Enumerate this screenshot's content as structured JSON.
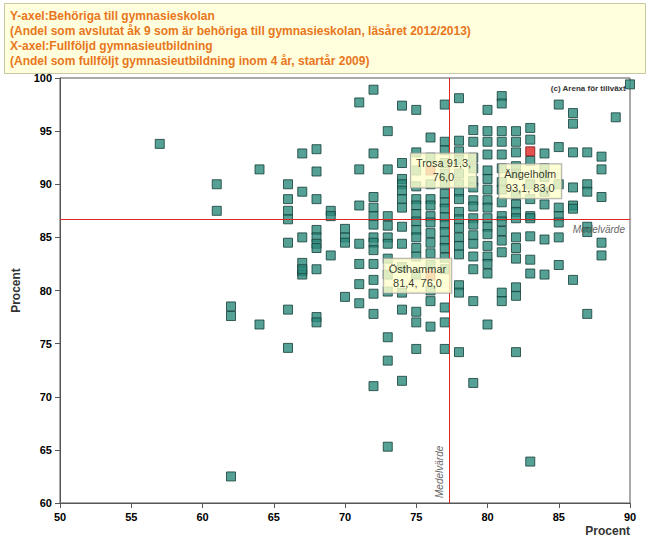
{
  "chart_data": {
    "type": "scatter",
    "title": [
      "Y-axel:Behöriga till gymnasieskolan",
      "(Andel som avslutat åk 9 som är behöriga till gymnasieskolan, läsåret 2012/2013)",
      "X-axel:Fullföljd gymnasieutbildning",
      "(Andel som fullföljt gymnasieutbildning inom 4 år, startår 2009)"
    ],
    "source": "(c) Arena för tillväxt",
    "xlabel": "Procent",
    "ylabel": "Procent",
    "xlim": [
      50,
      90
    ],
    "xticks": [
      50,
      55,
      60,
      65,
      70,
      75,
      80,
      85,
      90
    ],
    "ylim": [
      60,
      100
    ],
    "yticks": [
      60,
      65,
      70,
      75,
      80,
      85,
      90,
      95,
      100
    ],
    "grid": false,
    "marker": "square",
    "color": "#2a8a7c",
    "x": [
      57,
      61,
      61,
      62,
      62,
      62,
      64,
      64,
      66,
      66,
      66,
      66,
      66,
      66,
      66,
      67,
      67,
      67,
      67,
      67,
      67,
      67,
      68,
      68,
      68,
      68,
      68,
      68,
      68,
      68,
      68,
      68,
      69,
      69,
      69,
      70,
      70,
      70,
      70,
      71,
      71,
      71,
      71,
      71,
      71,
      71,
      72,
      72,
      72,
      72,
      72,
      72,
      72,
      72,
      72,
      72,
      72,
      72,
      72,
      72,
      73,
      73,
      73,
      73,
      73,
      73,
      73,
      73,
      73,
      73,
      73,
      73,
      74,
      74,
      74,
      74,
      74,
      74,
      74,
      74,
      74,
      74,
      74,
      74,
      74,
      75,
      75,
      75,
      75,
      75,
      75,
      75,
      75,
      75,
      75,
      75,
      75,
      75,
      75,
      75,
      75,
      76,
      76,
      76,
      76,
      76,
      76,
      76,
      76,
      76,
      76,
      76,
      76,
      76,
      76,
      77,
      77,
      77,
      77,
      77,
      77,
      77,
      77,
      77,
      77,
      77,
      77,
      77,
      77,
      77,
      77,
      77,
      77,
      77,
      78,
      78,
      78,
      78,
      78,
      78,
      78,
      78,
      78,
      78,
      78,
      78,
      78,
      78,
      78,
      78,
      78,
      79,
      79,
      79,
      79,
      79,
      79,
      79,
      79,
      79,
      79,
      79,
      79,
      79,
      79,
      79,
      79,
      80,
      80,
      80,
      80,
      80,
      80,
      80,
      80,
      80,
      80,
      80,
      80,
      80,
      80,
      80,
      80,
      80,
      81,
      81,
      81,
      81,
      81,
      81,
      81,
      81,
      81,
      81,
      81,
      81,
      81,
      81,
      81,
      81,
      82,
      82,
      82,
      82,
      82,
      82,
      82,
      82,
      82,
      82,
      82,
      82,
      82,
      82,
      82,
      83,
      83,
      83,
      83,
      83,
      83,
      83,
      83,
      83,
      83,
      83,
      84,
      84,
      84,
      84,
      84,
      84,
      84,
      85,
      85,
      85,
      85,
      85,
      85,
      85,
      85,
      86,
      86,
      86,
      86,
      86,
      86,
      86,
      87,
      87,
      87,
      87,
      87,
      87,
      88,
      88,
      88,
      88,
      88,
      89,
      90
    ],
    "values": [
      93.8,
      90.0,
      87.5,
      78.5,
      77.6,
      62.5,
      91.4,
      76.8,
      90.0,
      88.6,
      87.5,
      86.7,
      84.5,
      78.2,
      74.6,
      92.9,
      89.3,
      82.6,
      81.8,
      81.5,
      82.0,
      85.0,
      93.3,
      91.2,
      88.6,
      85.7,
      85.0,
      84.4,
      84.0,
      82.0,
      77.5,
      77.0,
      87.5,
      87.0,
      83.3,
      85.8,
      85.0,
      84.5,
      79.4,
      97.7,
      91.4,
      88.0,
      84.4,
      82.5,
      80.6,
      78.8,
      98.9,
      92.9,
      88.8,
      87.8,
      87.0,
      86.2,
      85.0,
      84.5,
      83.8,
      82.5,
      81.0,
      79.7,
      77.8,
      71.0,
      95.0,
      91.4,
      87.0,
      86.1,
      85.0,
      84.4,
      83.0,
      81.5,
      79.9,
      75.6,
      73.4,
      65.3,
      97.4,
      92.0,
      90.5,
      90.0,
      89.4,
      88.6,
      87.8,
      86.0,
      84.4,
      82.2,
      79.8,
      78.2,
      71.5,
      97.0,
      93.0,
      91.3,
      89.8,
      88.6,
      88.0,
      87.2,
      86.5,
      85.7,
      85.0,
      84.0,
      83.2,
      81.5,
      78.0,
      77.0,
      74.5,
      94.4,
      92.5,
      90.0,
      88.6,
      88.0,
      87.0,
      86.4,
      85.4,
      84.5,
      83.5,
      82.4,
      80.0,
      79.0,
      76.6,
      97.5,
      94.0,
      93.2,
      92.0,
      91.0,
      90.0,
      89.1,
      88.3,
      87.7,
      86.9,
      86.2,
      85.5,
      84.7,
      84.0,
      83.1,
      82.0,
      78.4,
      77.0,
      74.5,
      98.1,
      94.1,
      93.1,
      92.3,
      91.0,
      90.0,
      89.3,
      88.6,
      87.4,
      86.7,
      85.9,
      85.0,
      84.2,
      83.4,
      80.5,
      79.8,
      74.2,
      95.1,
      94.0,
      92.5,
      91.5,
      90.3,
      89.7,
      88.5,
      87.9,
      86.8,
      86.2,
      85.2,
      84.4,
      83.2,
      82.0,
      79.0,
      71.3,
      97.0,
      95.0,
      94.0,
      92.8,
      91.3,
      90.5,
      89.5,
      88.5,
      87.8,
      86.8,
      86.0,
      85.3,
      84.2,
      83.2,
      82.5,
      81.6,
      76.8,
      98.3,
      97.6,
      95.0,
      94.0,
      92.8,
      91.5,
      90.2,
      89.5,
      88.3,
      87.0,
      86.5,
      85.6,
      84.7,
      83.6,
      79.8,
      79.0,
      95.0,
      94.0,
      93.0,
      91.7,
      91.0,
      89.0,
      88.1,
      87.4,
      86.8,
      85.0,
      84.0,
      83.0,
      80.3,
      79.5,
      74.2,
      95.3,
      94.2,
      92.2,
      90.0,
      88.6,
      87.0,
      86.8,
      85.1,
      82.9,
      81.6,
      63.9,
      92.9,
      91.5,
      90.7,
      89.3,
      88.1,
      84.8,
      81.5,
      97.5,
      93.5,
      90.0,
      87.8,
      87.0,
      86.4,
      85.0,
      82.4,
      96.7,
      95.7,
      93.0,
      89.7,
      88.0,
      87.7,
      81.0,
      93.0,
      90.0,
      89.3,
      86.0,
      85.5,
      77.8,
      92.6,
      91.4,
      88.8,
      84.5,
      83.3,
      96.3,
      99.4
    ],
    "highlights": [
      {
        "x": 76.0,
        "y": 91.3,
        "label": "Trosa 91,3,\n76,0",
        "color": "#e02424"
      },
      {
        "x": 83.0,
        "y": 93.1,
        "label": "Ängelholm\n93,1, 83,0",
        "color": "#e02424"
      },
      {
        "x": 76.0,
        "y": 81.4,
        "label": "Östhammar\n81,4, 76,0",
        "color": "#e02424"
      }
    ],
    "reference_lines": [
      {
        "axis": "x",
        "value": 77.3,
        "label": "Medelvärde",
        "color": "#e02424"
      },
      {
        "axis": "y",
        "value": 86.7,
        "label": "Medelvärde",
        "color": "#e02424"
      }
    ]
  }
}
